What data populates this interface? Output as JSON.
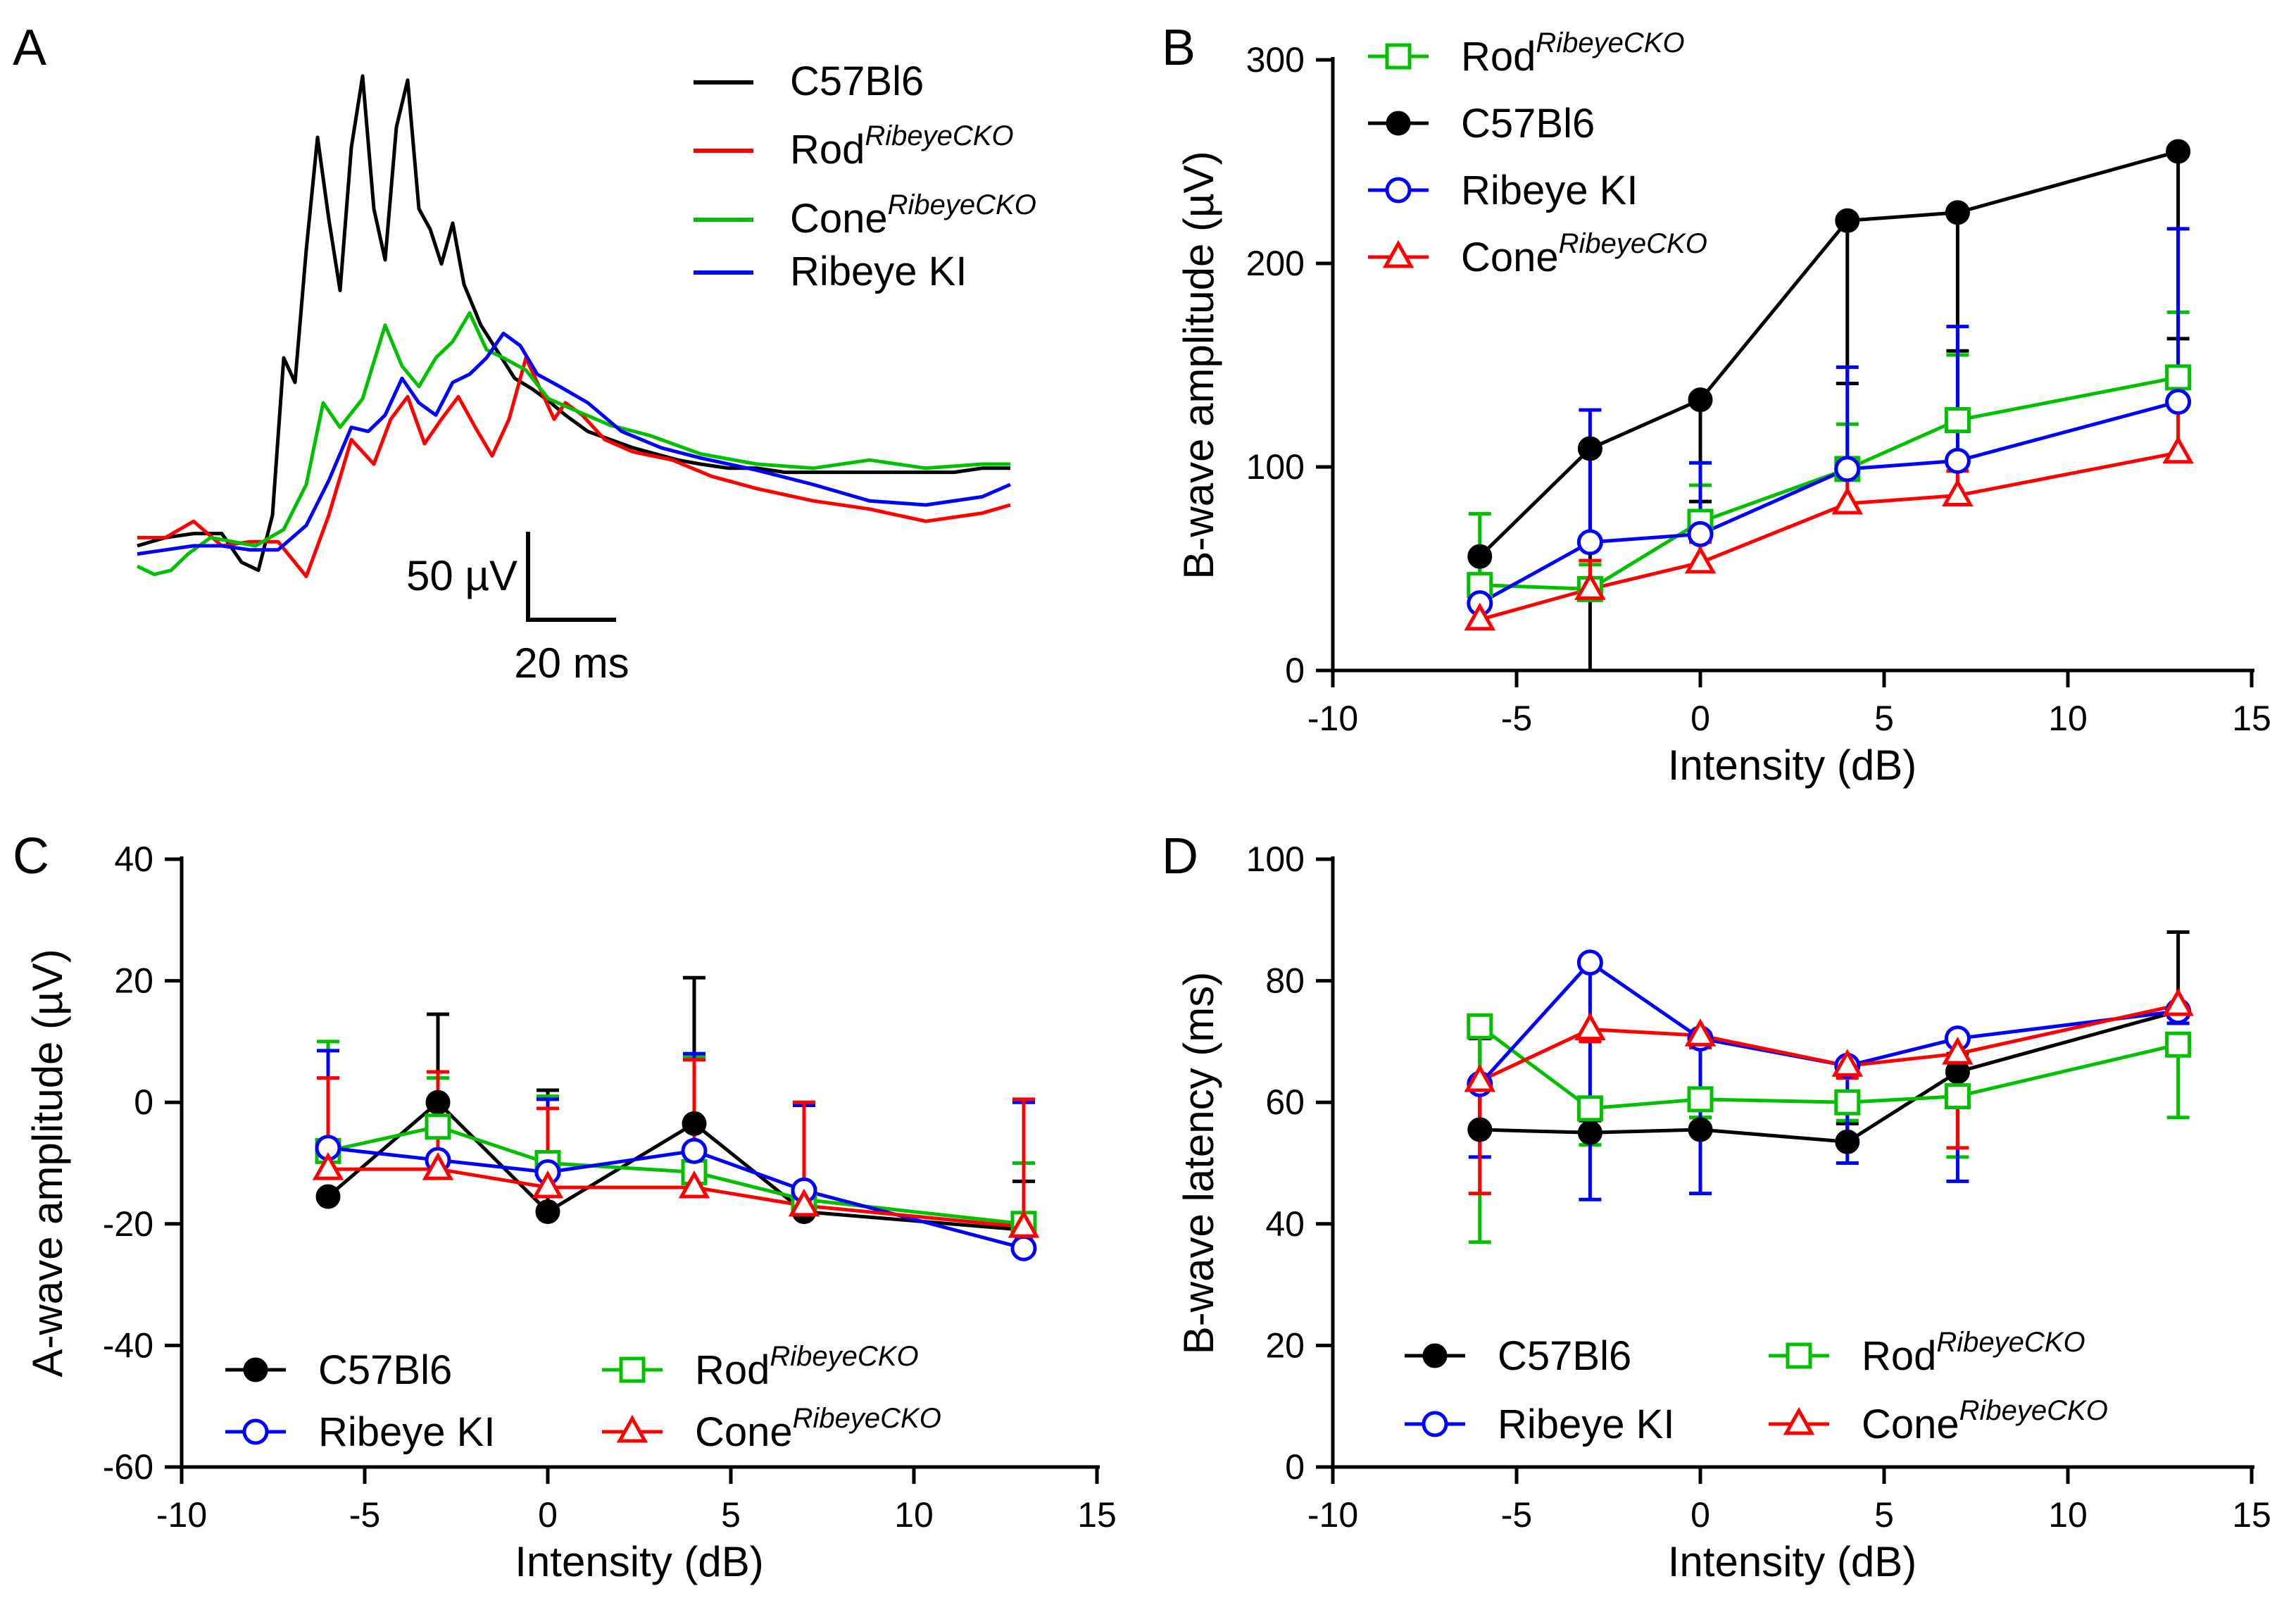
{
  "colors": {
    "C57Bl6": "#000000",
    "Rod": "#ff0000",
    "Cone": "#00c000",
    "RibeyeKI": "#0000ff",
    "Rod_BCD": "#00c000",
    "Cone_BCD": "#ff0000"
  },
  "chart_data": [
    {
      "panel": "A",
      "type": "line",
      "title": "",
      "legend": [
        {
          "base": "C57Bl6",
          "sup": "",
          "color": "#000000"
        },
        {
          "base": "Rod",
          "sup": "RibeyeCKO",
          "color": "#ff0000"
        },
        {
          "base": "Cone",
          "sup": "RibeyeCKO",
          "color": "#00c000"
        },
        {
          "base": "Ribeye KI",
          "sup": "",
          "color": "#0000ff"
        }
      ],
      "scale_bar": {
        "y_label": "50 µV",
        "x_label": "20 ms",
        "y_value_uV": 50,
        "x_value_ms": 20
      },
      "x_unit": "ms",
      "y_unit": "µV",
      "series": [
        {
          "name": "C57Bl6",
          "color": "#000000",
          "x": [
            0,
            10,
            20,
            30,
            37,
            43,
            48,
            52,
            56,
            60,
            64,
            68,
            72,
            76,
            80,
            84,
            88,
            92,
            96,
            100,
            104,
            108,
            112,
            116,
            122,
            128,
            134,
            140,
            146,
            152,
            160,
            168,
            176,
            184,
            192,
            200,
            210,
            220,
            230,
            240,
            250,
            260,
            270,
            280,
            290,
            300,
            310
          ],
          "y": [
            0,
            4,
            6,
            6,
            -8,
            -12,
            15,
            92,
            80,
            145,
            200,
            160,
            125,
            195,
            230,
            165,
            140,
            205,
            228,
            165,
            155,
            138,
            158,
            128,
            108,
            95,
            82,
            77,
            71,
            64,
            56,
            52,
            48,
            45,
            42,
            40,
            38,
            38,
            36,
            36,
            36,
            36,
            36,
            36,
            36,
            38,
            38
          ]
        },
        {
          "name": "Rod",
          "color": "#ff0000",
          "x": [
            0,
            10,
            20,
            30,
            40,
            50,
            60,
            68,
            76,
            84,
            90,
            96,
            102,
            108,
            114,
            120,
            126,
            132,
            138,
            142,
            148,
            152,
            158,
            166,
            176,
            190,
            204,
            220,
            240,
            260,
            280,
            300,
            310
          ],
          "y": [
            4,
            4,
            12,
            0,
            2,
            2,
            -15,
            15,
            52,
            40,
            62,
            73,
            50,
            62,
            73,
            58,
            44,
            62,
            92,
            80,
            62,
            70,
            64,
            52,
            46,
            42,
            34,
            28,
            22,
            18,
            12,
            16,
            20
          ]
        },
        {
          "name": "Cone",
          "color": "#00c000",
          "x": [
            0,
            6,
            12,
            18,
            26,
            34,
            42,
            52,
            60,
            66,
            72,
            80,
            88,
            94,
            100,
            106,
            112,
            118,
            124,
            130,
            138,
            146,
            156,
            168,
            182,
            200,
            220,
            240,
            260,
            280,
            300,
            310
          ],
          "y": [
            -10,
            -14,
            -12,
            -4,
            4,
            2,
            0,
            8,
            30,
            70,
            58,
            72,
            108,
            88,
            78,
            92,
            100,
            114,
            96,
            92,
            86,
            72,
            66,
            59,
            54,
            45,
            40,
            38,
            42,
            38,
            40,
            40
          ]
        },
        {
          "name": "Ribeye KI",
          "color": "#0000ff",
          "x": [
            0,
            10,
            20,
            30,
            40,
            50,
            60,
            68,
            76,
            82,
            88,
            94,
            100,
            106,
            112,
            118,
            124,
            130,
            136,
            142,
            150,
            160,
            172,
            186,
            200,
            220,
            240,
            260,
            280,
            300,
            310
          ],
          "y": [
            -4,
            -2,
            0,
            0,
            -2,
            -2,
            10,
            32,
            58,
            56,
            64,
            82,
            70,
            64,
            80,
            84,
            92,
            104,
            98,
            84,
            78,
            70,
            56,
            48,
            43,
            37,
            30,
            22,
            20,
            24,
            30
          ]
        }
      ]
    },
    {
      "panel": "B",
      "type": "line",
      "title": "",
      "xlabel": "Intensity (dB)",
      "ylabel": "B-wave amplitude (µV)",
      "xlim": [
        -10,
        15
      ],
      "ylim": [
        0,
        300
      ],
      "xticks": [
        -10,
        -5,
        0,
        5,
        10,
        15
      ],
      "yticks": [
        0,
        100,
        200,
        300
      ],
      "x": [
        -6,
        -3,
        0,
        4,
        7,
        13
      ],
      "legend": [
        {
          "key": "Rod",
          "base": "Rod",
          "sup": "RibeyeCKO"
        },
        {
          "key": "C57Bl6",
          "base": "C57Bl6",
          "sup": ""
        },
        {
          "key": "RibeyeKI",
          "base": "Ribeye KI",
          "sup": ""
        },
        {
          "key": "Cone",
          "base": "Cone",
          "sup": "RibeyeCKO"
        }
      ],
      "series": [
        {
          "key": "C57Bl6",
          "name": "C57Bl6",
          "color": "#000000",
          "marker": "filled-circle",
          "values": [
            56,
            109,
            133,
            221,
            225,
            255
          ],
          "err": [
            20,
            110,
            50,
            80,
            68,
            92
          ],
          "errdir": -1
        },
        {
          "key": "Rod",
          "name": "Rod RibeyeCKO",
          "color": "#00c000",
          "marker": "open-square",
          "values": [
            42,
            40,
            73,
            99,
            123,
            144
          ],
          "err": [
            35,
            12,
            18,
            22,
            32,
            32
          ],
          "errdir": 1
        },
        {
          "key": "RibeyeKI",
          "name": "Ribeye KI",
          "color": "#0000ff",
          "marker": "open-circle",
          "values": [
            33,
            63,
            67,
            99,
            103,
            132
          ],
          "err": [
            10,
            65,
            35,
            50,
            66,
            85
          ],
          "errdir": 1
        },
        {
          "key": "Cone",
          "name": "Cone RibeyeCKO",
          "color": "#ff0000",
          "marker": "open-triangle",
          "values": [
            25,
            40,
            53,
            82,
            86,
            107
          ],
          "err": [
            8,
            14,
            10,
            18,
            12,
            25
          ],
          "errdir": 1
        }
      ]
    },
    {
      "panel": "C",
      "type": "line",
      "title": "",
      "xlabel": "Intensity (dB)",
      "ylabel": "A-wave amplitude (µV)",
      "xlim": [
        -10,
        15
      ],
      "ylim": [
        -60,
        40
      ],
      "xticks": [
        -10,
        -5,
        0,
        5,
        10,
        15
      ],
      "yticks": [
        -60,
        -40,
        -20,
        0,
        20,
        40
      ],
      "x": [
        -6,
        -3,
        0,
        4,
        7,
        13
      ],
      "legend": [
        {
          "key": "C57Bl6",
          "base": "C57Bl6",
          "sup": ""
        },
        {
          "key": "Rod",
          "base": "Rod",
          "sup": "RibeyeCKO"
        },
        {
          "key": "RibeyeKI",
          "base": "Ribeye KI",
          "sup": ""
        },
        {
          "key": "Cone",
          "base": "Cone",
          "sup": "RibeyeCKO"
        }
      ],
      "series": [
        {
          "key": "C57Bl6",
          "name": "C57Bl6",
          "color": "#000000",
          "marker": "filled-circle",
          "values": [
            -15.5,
            0,
            -18,
            -3.5,
            -18,
            -21
          ],
          "err": [
            0,
            14.5,
            20,
            24,
            0,
            8
          ],
          "errdir": 1
        },
        {
          "key": "Rod",
          "name": "Rod RibeyeCKO",
          "color": "#00c000",
          "marker": "open-square",
          "values": [
            -8,
            -4,
            -10,
            -11.5,
            -16,
            -20
          ],
          "err": [
            18,
            8,
            11,
            19,
            16,
            10
          ],
          "errdir": 1
        },
        {
          "key": "RibeyeKI",
          "name": "Ribeye KI",
          "color": "#0000ff",
          "marker": "open-circle",
          "values": [
            -7.5,
            -9.5,
            -11.5,
            -8,
            -14.5,
            -24
          ],
          "err": [
            16,
            10,
            12,
            16,
            14,
            24
          ],
          "errdir": 1
        },
        {
          "key": "Cone",
          "name": "Cone RibeyeCKO",
          "color": "#ff0000",
          "marker": "open-triangle",
          "values": [
            -11,
            -11,
            -14,
            -14,
            -17,
            -20.5
          ],
          "err": [
            15,
            16,
            13,
            21,
            17,
            21
          ],
          "errdir": 1
        }
      ]
    },
    {
      "panel": "D",
      "type": "line",
      "title": "",
      "xlabel": "Intensity (dB)",
      "ylabel": "B-wave latency (ms)",
      "xlim": [
        -10,
        15
      ],
      "ylim": [
        0,
        100
      ],
      "xticks": [
        -10,
        -5,
        0,
        5,
        10,
        15
      ],
      "yticks": [
        0,
        20,
        40,
        60,
        80,
        100
      ],
      "x": [
        -6,
        -3,
        0,
        4,
        7,
        13
      ],
      "legend": [
        {
          "key": "C57Bl6",
          "base": "C57Bl6",
          "sup": ""
        },
        {
          "key": "Rod",
          "base": "Rod",
          "sup": "RibeyeCKO"
        },
        {
          "key": "RibeyeKI",
          "base": "Ribeye KI",
          "sup": ""
        },
        {
          "key": "Cone",
          "base": "Cone",
          "sup": "RibeyeCKO"
        }
      ],
      "series": [
        {
          "key": "C57Bl6",
          "name": "C57Bl6",
          "color": "#000000",
          "marker": "filled-circle",
          "values": [
            55.5,
            55,
            55.5,
            53.5,
            65,
            75
          ],
          "err": [
            15,
            2,
            2,
            3,
            3,
            13
          ],
          "errdir": 1
        },
        {
          "key": "Rod",
          "name": "Rod RibeyeCKO",
          "color": "#00c000",
          "marker": "open-square",
          "values": [
            72.5,
            59,
            60.5,
            60,
            61,
            69.5
          ],
          "err": [
            35.5,
            6,
            3,
            3,
            10,
            12
          ],
          "errdir": -1
        },
        {
          "key": "RibeyeKI",
          "name": "Ribeye KI",
          "color": "#0000ff",
          "marker": "open-circle",
          "values": [
            63,
            83,
            70.5,
            66,
            70.5,
            75
          ],
          "err": [
            12,
            39,
            25.5,
            16,
            23.5,
            2
          ],
          "errdir": -1
        },
        {
          "key": "Cone",
          "name": "Cone RibeyeCKO",
          "color": "#ff0000",
          "marker": "open-triangle",
          "values": [
            63.5,
            72,
            71,
            66,
            68,
            76
          ],
          "err": [
            18.5,
            2,
            2,
            2,
            15.5,
            2
          ],
          "errdir": -1
        }
      ]
    }
  ]
}
